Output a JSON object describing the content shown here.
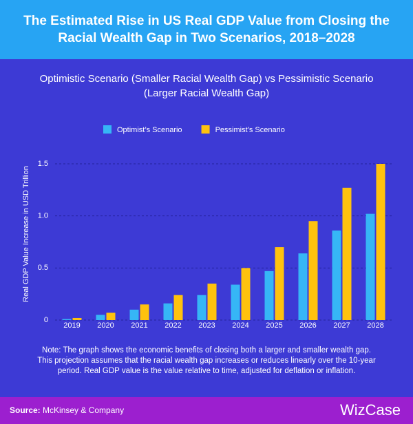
{
  "chart_data": {
    "type": "bar",
    "title": "The Estimated Rise in US Real GDP Value from Closing the Racial Wealth Gap in Two Scenarios, 2018–2028",
    "subtitle": "Optimistic Scenario (Smaller Racial Wealth Gap) vs Pessimistic Scenario (Larger Racial Wealth Gap)",
    "y_label": "Real GDP Value Increase in USD Trillion",
    "categories": [
      "2019",
      "2020",
      "2021",
      "2022",
      "2023",
      "2024",
      "2025",
      "2026",
      "2027",
      "2028"
    ],
    "series": [
      {
        "name": "Optimist’s Scenario",
        "color": "#36b6f6",
        "values": [
          0.01,
          0.05,
          0.1,
          0.16,
          0.24,
          0.34,
          0.47,
          0.64,
          0.86,
          1.02
        ]
      },
      {
        "name": "Pessimist’s Scenario",
        "color": "#ffc20e",
        "values": [
          0.02,
          0.07,
          0.15,
          0.24,
          0.35,
          0.5,
          0.7,
          0.95,
          1.27,
          1.5
        ]
      }
    ],
    "ylim": [
      0,
      1.5
    ],
    "yticks": [
      0,
      0.5,
      {
        "value": 1,
        "label": "1.0"
      },
      1.5
    ],
    "grid": true,
    "legend": "top",
    "note": "Note: The graph shows the economic benefits of closing both a larger and smaller wealth gap. This projection assumes that the racial wealth gap increases or reduces linearly over the 10-year period. Real GDP value is the value relative to time, adjusted for deflation or inflation.",
    "source_label": "Source:",
    "source": "McKinsey & Company",
    "logo": "WizCase"
  }
}
